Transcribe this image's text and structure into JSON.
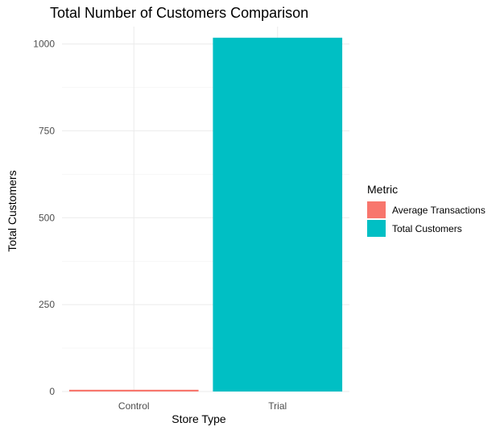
{
  "chart_data": {
    "type": "bar",
    "title": "Total Number of Customers Comparison",
    "xlabel": "Store Type",
    "ylabel": "Total Customers",
    "categories": [
      "Control",
      "Trial"
    ],
    "series": [
      {
        "name": "Average Transactions",
        "values": [
          5,
          null
        ],
        "color": "#F8766D"
      },
      {
        "name": "Total Customers",
        "values": [
          null,
          1018
        ],
        "color": "#00BFC4"
      }
    ],
    "ylim": [
      0,
      1050
    ],
    "yticks": [
      0,
      250,
      500,
      750,
      1000
    ],
    "grid": true,
    "legend": {
      "title": "Metric",
      "position": "right",
      "entries": [
        "Average Transactions",
        "Total Customers"
      ]
    }
  }
}
